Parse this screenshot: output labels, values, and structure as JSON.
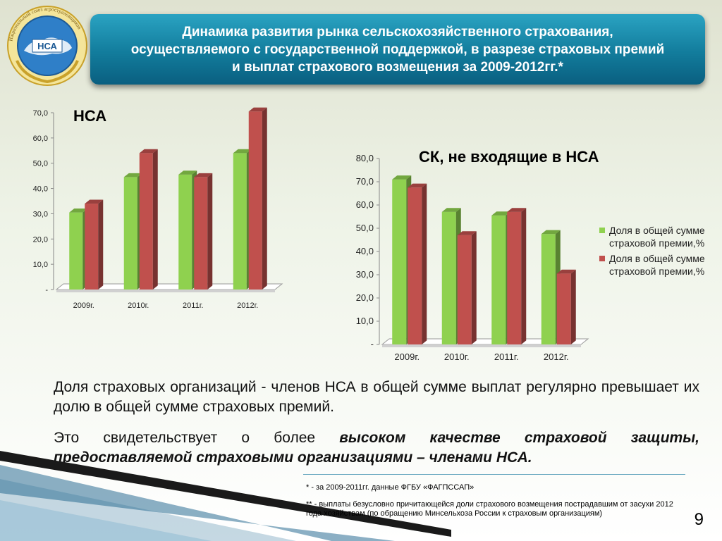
{
  "header": {
    "title": "Динамика развития рынка сельскохозяйственного страхования, осуществляемого с государственной поддержкой, в разрезе страховых премий и выплат страхового возмещения за 2009-2012гг.*",
    "logo_ring_text": "Национальный союз агростраховщиков",
    "logo_text": "НСА"
  },
  "colors": {
    "green": "#8fd14f",
    "red": "#c0504d",
    "title_blue": "#127c9c"
  },
  "chart_data": [
    {
      "type": "bar",
      "title": "НСА",
      "categories": [
        "2009г.",
        "2010г.",
        "2011г.",
        "2012г."
      ],
      "series": [
        {
          "values": [
            30.5,
            44.5,
            45.5,
            54.0
          ],
          "color": "#8fd14f"
        },
        {
          "values": [
            34.0,
            54.0,
            44.5,
            70.5
          ],
          "color": "#c0504d"
        }
      ],
      "ylim": [
        0,
        70
      ],
      "yticks": [
        "-",
        "10,0",
        "20,0",
        "30,0",
        "40,0",
        "50,0",
        "60,0",
        "70,0"
      ]
    },
    {
      "type": "bar",
      "title": "СК, не входящие в НСА",
      "categories": [
        "2009г.",
        "2010г.",
        "2011г.",
        "2012г."
      ],
      "series": [
        {
          "name": "Доля в общей сумме страховой премии,%",
          "values": [
            71.0,
            57.0,
            55.5,
            47.5
          ],
          "color": "#8fd14f"
        },
        {
          "name": "Доля в общей сумме страховой премии,%",
          "values": [
            67.5,
            47.0,
            57.0,
            30.5
          ],
          "color": "#c0504d"
        }
      ],
      "ylim": [
        0,
        80
      ],
      "yticks": [
        "-",
        "10,0",
        "20,0",
        "30,0",
        "40,0",
        "50,0",
        "60,0",
        "70,0",
        "80,0"
      ],
      "legend_position": "right"
    }
  ],
  "text": {
    "p1": "Доля страховых организаций - членов НСА в общей сумме выплат регулярно превышает их долю в общей сумме страховых премий.",
    "p2_pre": "Это свидетельствует о более ",
    "p2_emph": "высоком качестве страховой защиты, предоставляемой страховыми организациями – членами НСА."
  },
  "footnotes": {
    "fn1": "* - за 2009-2011гг. данные ФГБУ «ФАГПССАП»",
    "fn2": "** - выплаты безусловно причитающейся доли страхового возмещения пострадавшим от засухи 2012 года хозяйствам (по обращению Минсельхоза России к страховым организациям)"
  },
  "page_number": "9"
}
